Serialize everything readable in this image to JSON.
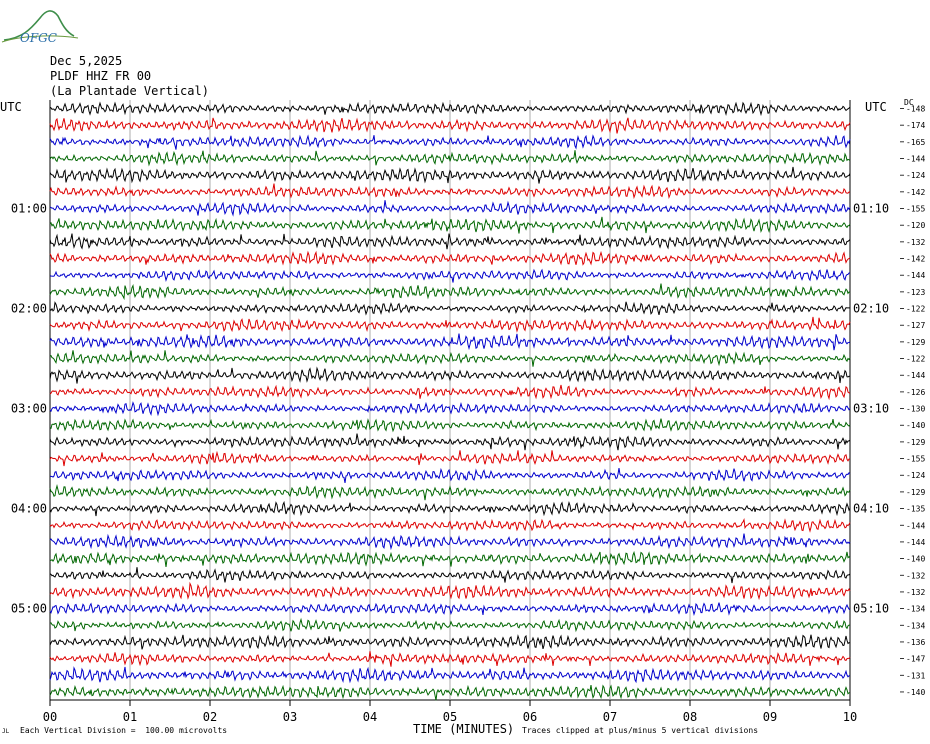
{
  "logo": {
    "text": "OFGC",
    "color": "#2a6ea8",
    "mountain_color": "#3e8e4a"
  },
  "header": {
    "date": "Dec 5,2025",
    "station": "PLDF HHZ FR 00",
    "location": "(La Plantade Vertical)"
  },
  "axis_labels": {
    "utc_left": "UTC",
    "utc_right": "UTC",
    "dc_label": "DC",
    "x_axis_title": "TIME (MINUTES)"
  },
  "footer": {
    "scale_note": "Each Vertical Division =  100.00 microvolts",
    "clip_note": "Traces clipped at plus/minus 5 vertical divisions",
    "corner_mark": "JL"
  },
  "chart_data": {
    "type": "line",
    "title": "",
    "xlabel": "TIME (MINUTES)",
    "ylabel": "",
    "xlim": [
      0,
      10
    ],
    "x_ticks": [
      "00",
      "01",
      "02",
      "03",
      "04",
      "05",
      "06",
      "07",
      "08",
      "09",
      "10"
    ],
    "trace_colors": [
      "#000000",
      "#dd0000",
      "#0000cc",
      "#006600"
    ],
    "left_time_labels": [
      {
        "row": 6,
        "label": "01:00"
      },
      {
        "row": 12,
        "label": "02:00"
      },
      {
        "row": 18,
        "label": "03:00"
      },
      {
        "row": 24,
        "label": "04:00"
      },
      {
        "row": 30,
        "label": "05:00"
      }
    ],
    "right_time_labels": [
      {
        "row": 6,
        "label": "01:10"
      },
      {
        "row": 12,
        "label": "02:10"
      },
      {
        "row": 18,
        "label": "03:10"
      },
      {
        "row": 24,
        "label": "04:10"
      },
      {
        "row": 30,
        "label": "05:10"
      }
    ],
    "dc_offsets": [
      "-148",
      "-174",
      "-165",
      "-144",
      "-124",
      "-142",
      "-155",
      "-120",
      "-132",
      "-142",
      "-144",
      "-123",
      "-122",
      "-127",
      "-129",
      "-122",
      "-144",
      "-126",
      "-130",
      "-140",
      "-129",
      "-155",
      "-124",
      "-129",
      "-135",
      "-144",
      "-144",
      "-140",
      "-132",
      "-132",
      "-134",
      "-134",
      "-136",
      "-147",
      "-131",
      "-140"
    ],
    "amplitude_note": "Each Vertical Division = 100.00 microvolts; traces clipped at plus/minus 5 vertical divisions"
  }
}
